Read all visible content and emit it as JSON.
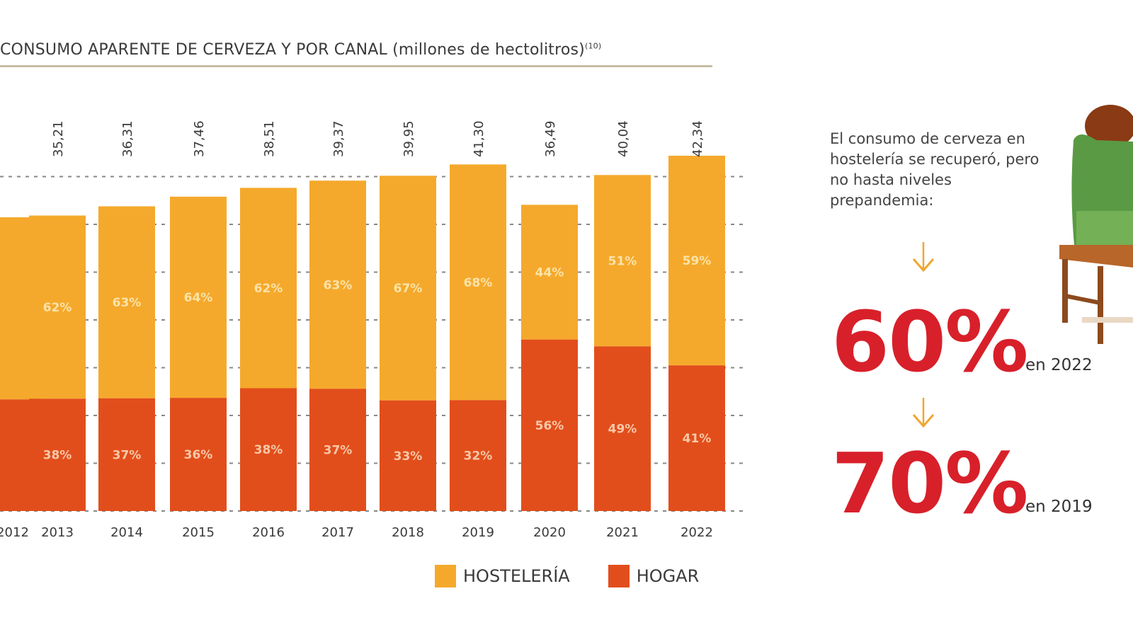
{
  "chart_data": {
    "type": "bar",
    "stacked": true,
    "title": "CONSUMO APARENTE DE CERVEZA Y POR CANAL (millones de hectolitros)",
    "title_footnote": "(10)",
    "xlabel": "",
    "ylabel": "",
    "categories": [
      "2012",
      "2013",
      "2014",
      "2015",
      "2016",
      "2017",
      "2018",
      "2019",
      "2020",
      "2021",
      "2022"
    ],
    "totals": [
      null,
      35.21,
      36.31,
      37.46,
      38.51,
      39.37,
      39.95,
      41.3,
      36.49,
      40.04,
      42.34
    ],
    "total_labels": [
      "",
      "35,21",
      "36,31",
      "37,46",
      "38,51",
      "39,37",
      "39,95",
      "41,30",
      "36,49",
      "40,04",
      "42,34"
    ],
    "series": [
      {
        "name": "HOGAR",
        "color": "#e24e1b",
        "percent": [
          38,
          38,
          37,
          36,
          38,
          37,
          33,
          32,
          56,
          49,
          41
        ],
        "labels": [
          "",
          "38%",
          "37%",
          "36%",
          "38%",
          "37%",
          "33%",
          "32%",
          "56%",
          "49%",
          "41%"
        ]
      },
      {
        "name": "HOSTELERÍA",
        "color": "#f5a92c",
        "percent": [
          62,
          62,
          63,
          64,
          62,
          63,
          67,
          68,
          44,
          51,
          59
        ],
        "labels": [
          "",
          "62%",
          "63%",
          "64%",
          "62%",
          "63%",
          "67%",
          "68%",
          "44%",
          "51%",
          "59%"
        ]
      }
    ],
    "partial_first_category": true,
    "first_category_total_estimate": 35.0,
    "ylim": [
      0,
      42.34
    ],
    "grid": true,
    "grid_style": "dotted",
    "legend": "bottom-right"
  },
  "legend": {
    "hosteleria": {
      "label": "HOSTELERÍA",
      "color": "#f5a92c"
    },
    "hogar": {
      "label": "HOGAR",
      "color": "#e24e1b"
    }
  },
  "side_panel": {
    "text": "El consumo de cerveza en hostelería se recuperó, pero no hasta niveles prepandemia:",
    "stat_2022": {
      "value": "60%",
      "label": "en 2022"
    },
    "stat_2019": {
      "value": "70%",
      "label": "en 2019"
    },
    "accent_color": "#d8202a",
    "arrow_color": "#f0a630"
  },
  "colors": {
    "title_rule": "#c9bca3",
    "grid": "#888888",
    "text": "#3a3a3a"
  }
}
